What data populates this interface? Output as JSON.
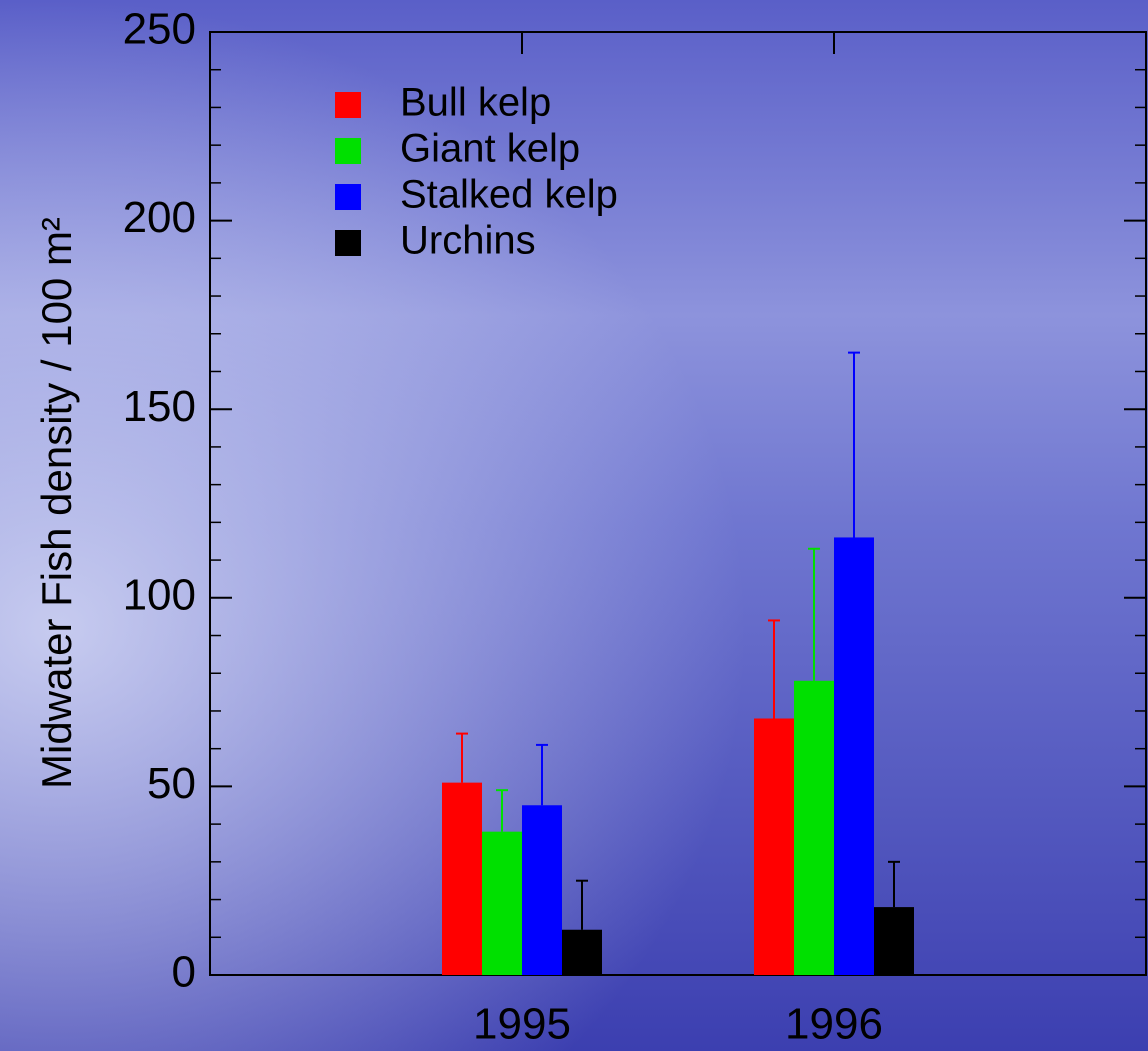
{
  "chart_data": {
    "type": "bar",
    "y_label": "Midwater Fish density / 100 m²",
    "x": [
      1995,
      1996
    ],
    "xlim": [
      1994,
      1997
    ],
    "xticks": [
      1995,
      1996
    ],
    "ylim": [
      0,
      250
    ],
    "yticks": [
      0,
      50,
      100,
      150,
      200,
      250
    ],
    "yminorticks": [
      10,
      20,
      30,
      40,
      60,
      70,
      80,
      90,
      110,
      120,
      130,
      140,
      160,
      170,
      180,
      190,
      210,
      220,
      230,
      240
    ],
    "legend": "upper-left",
    "series": [
      {
        "name": "Bull kelp",
        "color": "#ff0000",
        "values": [
          51,
          68
        ],
        "errors": [
          13,
          26
        ]
      },
      {
        "name": "Giant kelp",
        "color": "#00e000",
        "values": [
          38,
          78
        ],
        "errors": [
          11,
          35
        ]
      },
      {
        "name": "Stalked kelp",
        "color": "#0000ff",
        "values": [
          45,
          116
        ],
        "errors": [
          16,
          49
        ]
      },
      {
        "name": "Urchins",
        "color": "#000000",
        "values": [
          12,
          18
        ],
        "errors": [
          13,
          12
        ]
      }
    ]
  }
}
